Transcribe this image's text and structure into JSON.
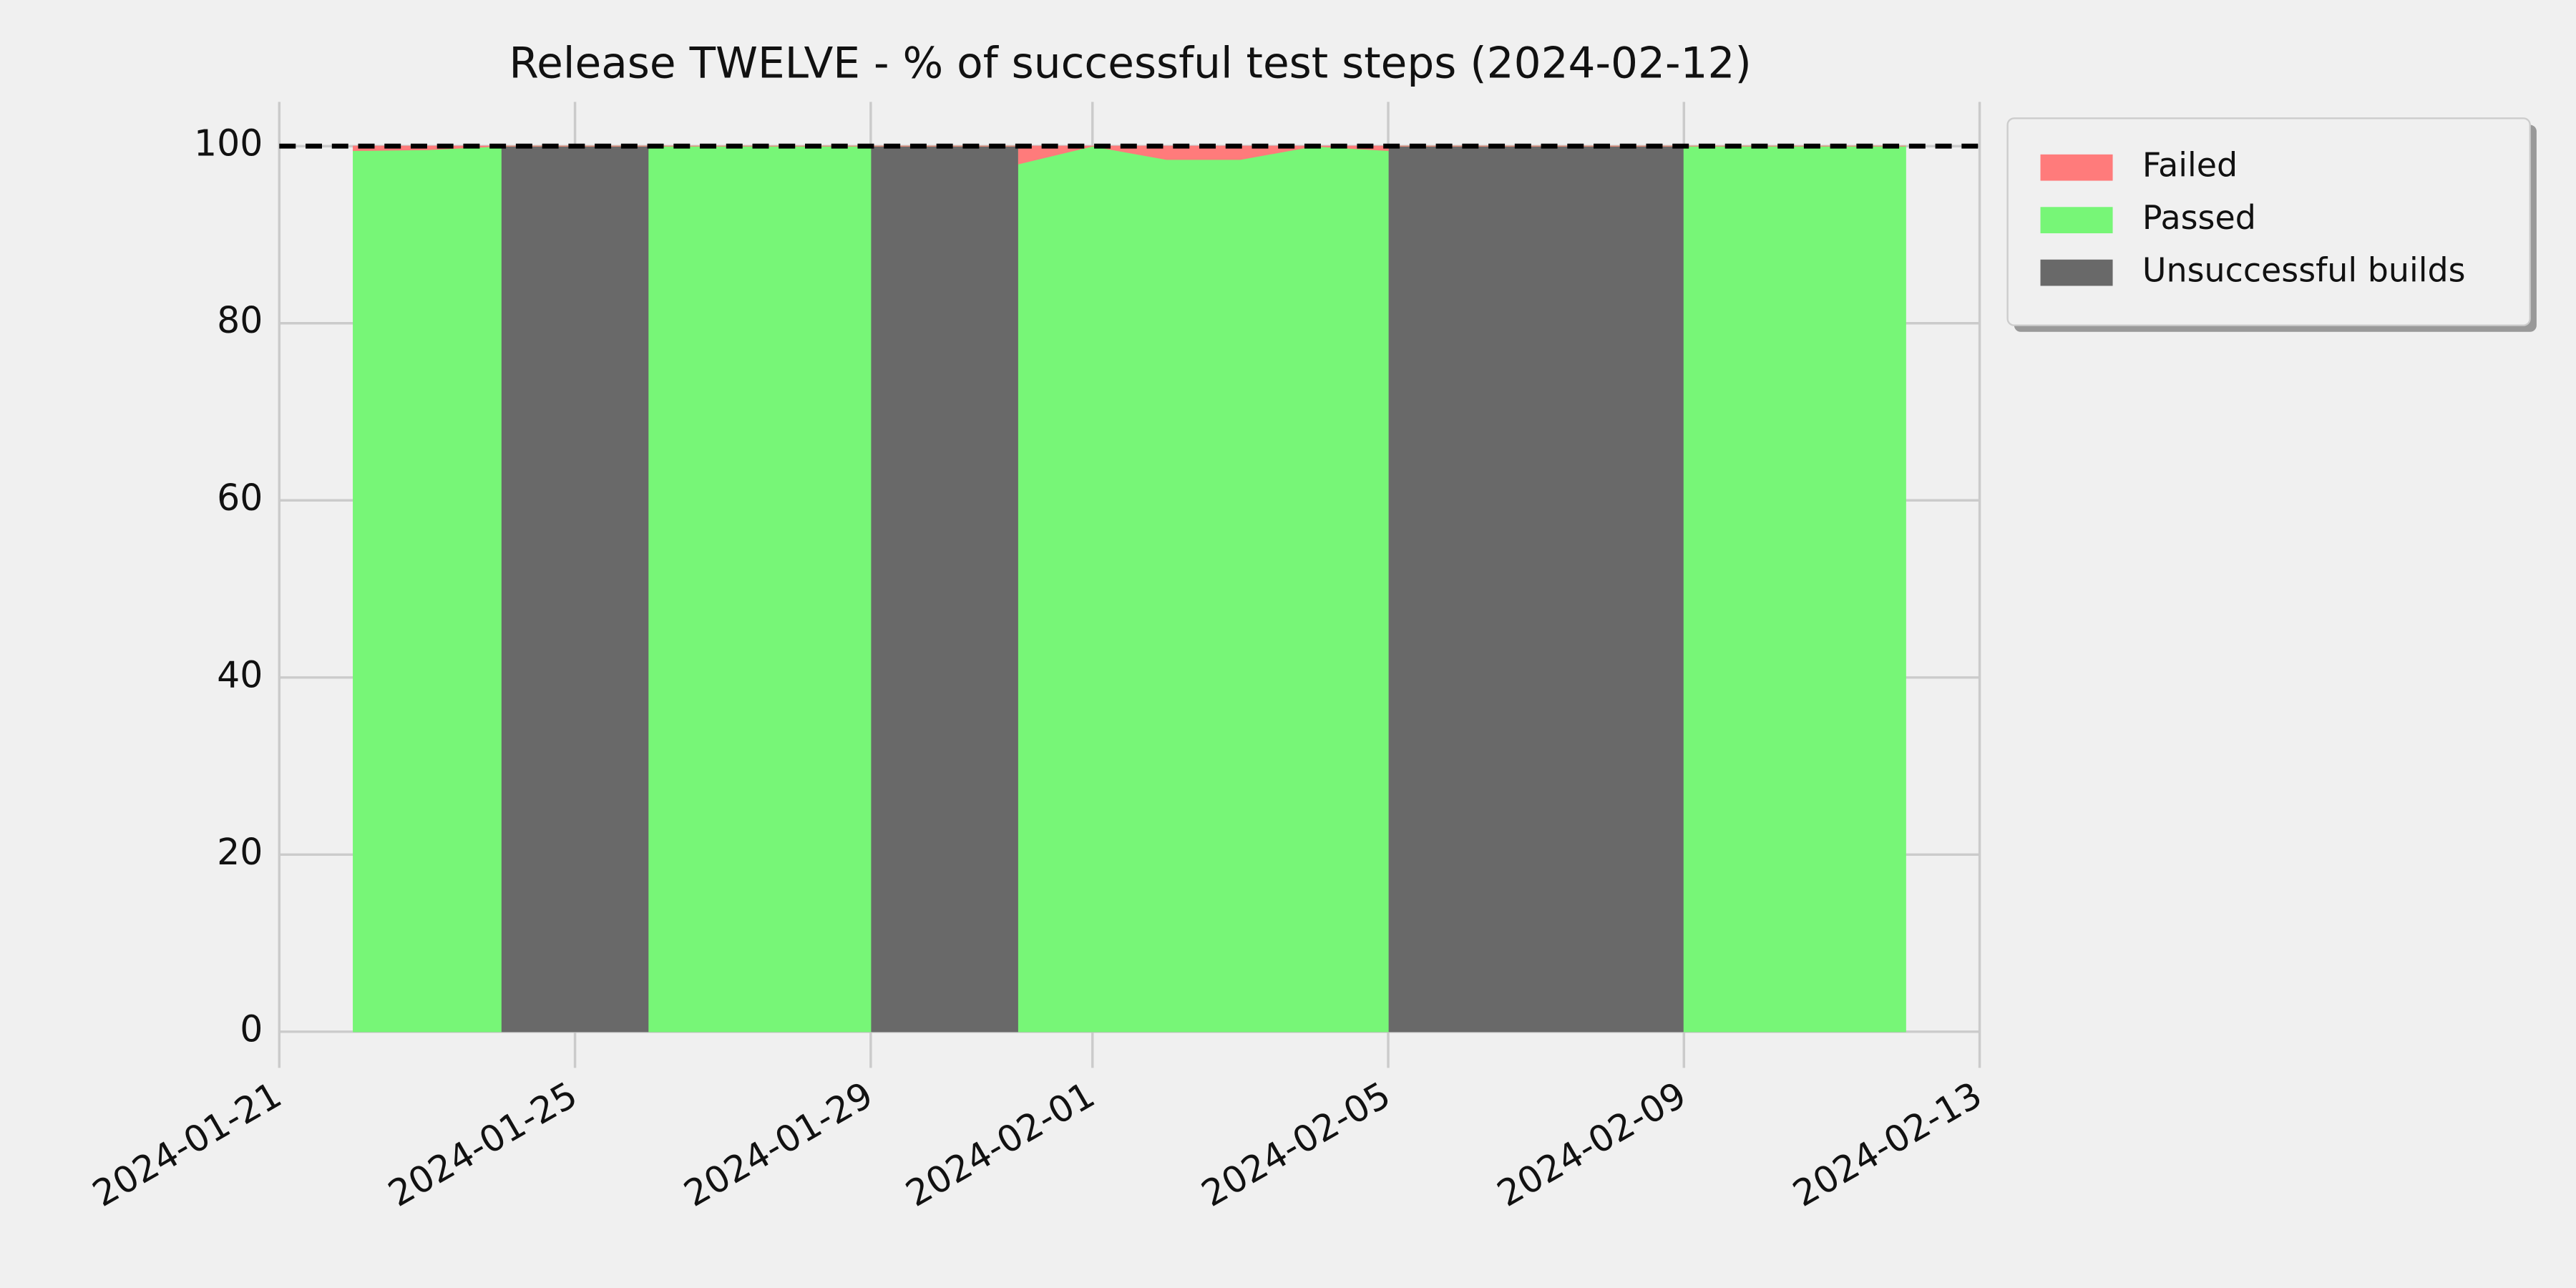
{
  "chart_data": {
    "type": "stacked_area",
    "title": "Release TWELVE - % of successful test steps (2024-02-12)",
    "x": [
      "2024-01-22",
      "2024-01-23",
      "2024-01-24",
      "2024-01-24",
      "2024-01-25",
      "2024-01-26",
      "2024-01-26",
      "2024-01-27",
      "2024-01-28",
      "2024-01-29",
      "2024-01-29",
      "2024-01-30",
      "2024-01-31",
      "2024-01-31",
      "2024-02-01",
      "2024-02-02",
      "2024-02-03",
      "2024-02-04",
      "2024-02-05",
      "2024-02-05",
      "2024-02-06",
      "2024-02-07",
      "2024-02-08",
      "2024-02-09",
      "2024-02-09",
      "2024-02-10",
      "2024-02-11",
      "2024-02-12"
    ],
    "series": [
      {
        "name": "Failed",
        "color": "#ff7b7b",
        "values": [
          0.5,
          0.4,
          0,
          0,
          0,
          0,
          0,
          0,
          0,
          0,
          0,
          0,
          0,
          2,
          0,
          1.5,
          1.5,
          0,
          0.5,
          0,
          0,
          0,
          0,
          0,
          0,
          0,
          0,
          0
        ]
      },
      {
        "name": "Passed",
        "color": "#77f677",
        "values": [
          99.5,
          99.6,
          100,
          0,
          0,
          0,
          100,
          100,
          100,
          100,
          0,
          0,
          0,
          98,
          100,
          98.5,
          98.5,
          100,
          99.5,
          0,
          0,
          0,
          0,
          0,
          100,
          100,
          100,
          100
        ]
      },
      {
        "name": "Unsuccessful builds",
        "color": "#696969",
        "values": [
          0,
          0,
          0,
          100,
          100,
          100,
          0,
          0,
          0,
          0,
          100,
          100,
          100,
          0,
          0,
          0,
          0,
          0,
          0,
          100,
          100,
          100,
          100,
          100,
          0,
          0,
          0,
          0
        ]
      }
    ],
    "reference_line": 100,
    "xlim": [
      "2024-01-21",
      "2024-02-13"
    ],
    "xticks": [
      "2024-01-21",
      "2024-01-25",
      "2024-01-29",
      "2024-02-01",
      "2024-02-05",
      "2024-02-09",
      "2024-02-13"
    ],
    "ylim": [
      0,
      105
    ],
    "yticks": [
      0,
      20,
      40,
      60,
      80,
      100
    ],
    "grid": true,
    "legend": "outside-upper-right"
  }
}
